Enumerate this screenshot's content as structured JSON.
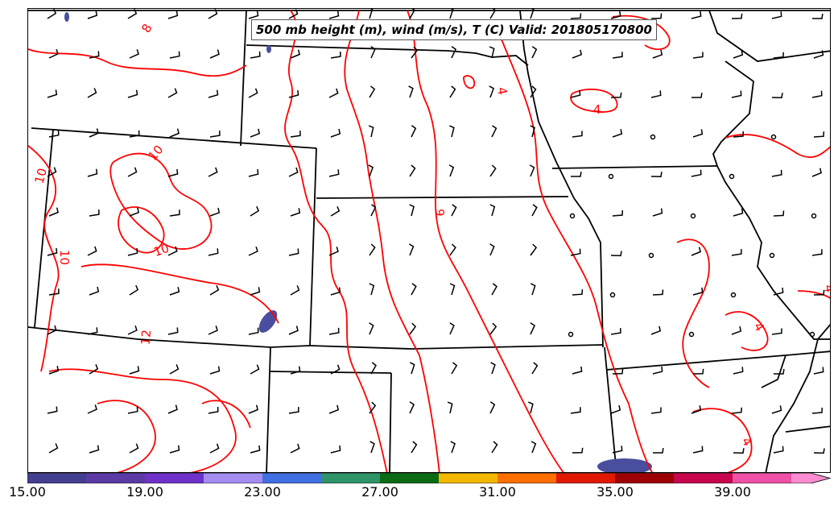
{
  "title": "500 mb height (m), wind (m/s), T (C) Valid: 201805170800",
  "colorbar": {
    "tick_labels": [
      "15.00",
      "19.00",
      "23.00",
      "27.00",
      "31.00",
      "35.00",
      "39.00"
    ],
    "range": [
      15,
      43
    ],
    "colors": [
      "#433f8f",
      "#5b3aa6",
      "#6e32c8",
      "#a48cf0",
      "#3f6fe0",
      "#2f9468",
      "#0a6b14",
      "#f2b800",
      "#ff6e00",
      "#e01800",
      "#9c0005",
      "#c8064e",
      "#f050a6",
      "#ff8cd0"
    ]
  },
  "contours": {
    "color": "#ff0000",
    "labels": [
      "8",
      "10",
      "10",
      "10",
      "10",
      "12",
      "9",
      "4",
      "4",
      "4",
      "4",
      "4",
      "4"
    ]
  },
  "legend_colors": {
    "state_border": "#000000",
    "temperature_contour": "#ff0000",
    "wind_barb": "#000000"
  }
}
